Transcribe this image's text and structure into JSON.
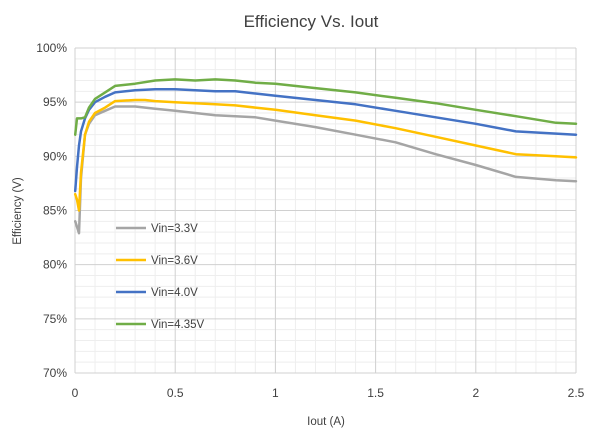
{
  "chart_data": {
    "type": "line",
    "title": "Efficiency Vs. Iout",
    "xlabel": "Iout (A)",
    "ylabel": "Efficiency (V)",
    "xlim": [
      0,
      2.5
    ],
    "ylim": [
      70,
      100
    ],
    "x_ticks": [
      0,
      0.5,
      1,
      1.5,
      2,
      2.5
    ],
    "x_tick_labels": [
      "0",
      "0.5",
      "1",
      "1.5",
      "2",
      "2.5"
    ],
    "y_ticks": [
      70,
      75,
      80,
      85,
      90,
      95,
      100
    ],
    "y_tick_labels": [
      "70%",
      "75%",
      "80%",
      "85%",
      "90%",
      "95%",
      "100%"
    ],
    "grid": true,
    "legend_position": "left",
    "series": [
      {
        "name": "Vin=3.3V",
        "color": "#a5a5a5",
        "x": [
          0.001,
          0.01,
          0.02,
          0.03,
          0.05,
          0.07,
          0.1,
          0.15,
          0.2,
          0.3,
          0.4,
          0.5,
          0.6,
          0.7,
          0.8,
          0.9,
          1.0,
          1.2,
          1.4,
          1.6,
          1.8,
          2.0,
          2.2,
          2.4,
          2.5
        ],
        "y": [
          84.0,
          83.5,
          82.9,
          88.0,
          92.0,
          93.0,
          93.8,
          94.2,
          94.6,
          94.6,
          94.4,
          94.2,
          94.0,
          93.8,
          93.7,
          93.6,
          93.3,
          92.7,
          92.0,
          91.3,
          90.2,
          89.2,
          88.1,
          87.8,
          87.7
        ]
      },
      {
        "name": "Vin=3.6V",
        "color": "#ffc000",
        "x": [
          0.001,
          0.01,
          0.02,
          0.03,
          0.05,
          0.07,
          0.1,
          0.15,
          0.2,
          0.3,
          0.35,
          0.4,
          0.5,
          0.6,
          0.7,
          0.8,
          0.9,
          1.0,
          1.2,
          1.4,
          1.6,
          1.8,
          2.0,
          2.2,
          2.4,
          2.5
        ],
        "y": [
          86.5,
          86.0,
          85.0,
          88.5,
          92.0,
          93.2,
          94.0,
          94.5,
          95.1,
          95.2,
          95.2,
          95.1,
          95.0,
          94.9,
          94.8,
          94.7,
          94.5,
          94.3,
          93.8,
          93.3,
          92.6,
          91.8,
          91.0,
          90.2,
          90.0,
          89.9
        ]
      },
      {
        "name": "Vin=4.0V",
        "color": "#4472c4",
        "x": [
          0.001,
          0.01,
          0.02,
          0.03,
          0.05,
          0.07,
          0.1,
          0.15,
          0.2,
          0.3,
          0.4,
          0.5,
          0.6,
          0.7,
          0.8,
          0.9,
          1.0,
          1.2,
          1.4,
          1.6,
          1.8,
          2.0,
          2.2,
          2.4,
          2.5
        ],
        "y": [
          86.8,
          89.0,
          91.0,
          92.3,
          93.5,
          94.3,
          95.0,
          95.5,
          95.9,
          96.1,
          96.2,
          96.2,
          96.1,
          96.0,
          96.0,
          95.8,
          95.6,
          95.2,
          94.8,
          94.2,
          93.6,
          93.0,
          92.3,
          92.1,
          92.0
        ]
      },
      {
        "name": "Vin=4.35V",
        "color": "#70ad47",
        "x": [
          0.001,
          0.01,
          0.02,
          0.03,
          0.05,
          0.07,
          0.1,
          0.15,
          0.2,
          0.3,
          0.4,
          0.5,
          0.6,
          0.7,
          0.8,
          0.9,
          1.0,
          1.2,
          1.4,
          1.6,
          1.8,
          2.0,
          2.2,
          2.4,
          2.5
        ],
        "y": [
          92.0,
          93.5,
          93.5,
          93.5,
          93.6,
          94.5,
          95.3,
          95.9,
          96.5,
          96.7,
          97.0,
          97.1,
          97.0,
          97.1,
          97.0,
          96.8,
          96.7,
          96.3,
          95.9,
          95.4,
          94.9,
          94.3,
          93.7,
          93.1,
          93.0
        ]
      }
    ]
  }
}
